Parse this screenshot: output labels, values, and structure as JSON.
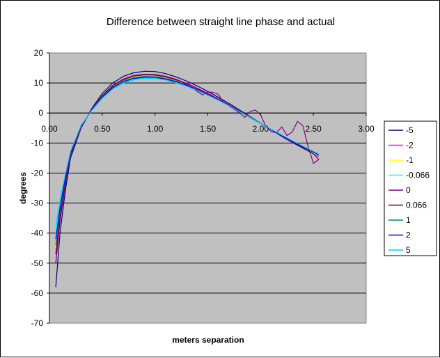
{
  "chart_data": {
    "type": "line",
    "title": "Difference between straight line phase and actual",
    "xlabel": "meters separation",
    "ylabel": "degrees",
    "xlim": [
      0.0,
      3.0
    ],
    "ylim": [
      -70,
      20
    ],
    "xticks": [
      "0.00",
      "0.50",
      "1.00",
      "1.50",
      "2.00",
      "2.50",
      "3.00"
    ],
    "xtick_values": [
      0,
      0.5,
      1,
      1.5,
      2,
      2.5,
      3
    ],
    "yticks": [
      "20",
      "10",
      "0",
      "-10",
      "-20",
      "-30",
      "-40",
      "-50",
      "-60",
      "-70"
    ],
    "ytick_values": [
      20,
      10,
      0,
      -10,
      -20,
      -30,
      -40,
      -50,
      -60,
      -70
    ],
    "grid": "horizontal",
    "plot_background": "#C0C0C0",
    "legend_position": "right",
    "series": [
      {
        "name": "-5",
        "color": "#000080",
        "x": [
          0.06,
          0.1,
          0.15,
          0.2,
          0.3,
          0.4,
          0.5,
          0.6,
          0.7,
          0.8,
          0.9,
          1.0,
          1.1,
          1.2,
          1.3,
          1.4,
          1.5,
          1.6,
          1.7,
          1.8,
          1.9,
          2.0,
          2.1,
          2.2,
          2.3,
          2.4,
          2.5,
          2.55
        ],
        "y": [
          -58,
          -40,
          -26,
          -15,
          -5,
          1.5,
          6.5,
          10,
          12.2,
          13.4,
          13.9,
          13.8,
          13.1,
          12.0,
          10.6,
          9.0,
          7.2,
          5.2,
          3.2,
          1.0,
          -1.2,
          -3.4,
          -5.6,
          -7.8,
          -9.8,
          -11.7,
          -13.6,
          -14.5
        ]
      },
      {
        "name": "-2",
        "color": "#FF00FF",
        "x": [
          0.06,
          0.1,
          0.15,
          0.2,
          0.3,
          0.4,
          0.5,
          0.6,
          0.7,
          0.8,
          0.9,
          1.0,
          1.1,
          1.2,
          1.3,
          1.4,
          1.5,
          1.6,
          1.7,
          1.8,
          1.9,
          2.0,
          2.1,
          2.2,
          2.3,
          2.4,
          2.5,
          2.55
        ],
        "y": [
          -50,
          -36,
          -24,
          -14,
          -4.8,
          1.2,
          5.8,
          9.2,
          11.3,
          12.5,
          12.9,
          12.8,
          12.2,
          11.2,
          9.9,
          8.3,
          6.6,
          4.7,
          2.8,
          0.7,
          -1.4,
          -3.5,
          -5.6,
          -7.6,
          -9.6,
          -11.6,
          -13.5,
          -14.5
        ]
      },
      {
        "name": "-1",
        "color": "#FFFF00",
        "x": [
          0.06,
          0.1,
          0.15,
          0.2,
          0.3,
          0.4,
          0.5,
          0.6,
          0.7,
          0.8,
          0.9,
          1.0,
          1.1,
          1.2,
          1.3,
          1.4,
          1.5,
          1.6,
          1.7,
          1.8,
          1.9,
          2.0,
          2.1,
          2.2,
          2.3,
          2.4,
          2.5,
          2.55
        ],
        "y": [
          -45,
          -33,
          -22.5,
          -13.5,
          -4.5,
          1.0,
          5.5,
          8.8,
          10.9,
          12.0,
          12.4,
          12.3,
          11.7,
          10.8,
          9.5,
          8.0,
          6.3,
          4.5,
          2.6,
          0.6,
          -1.4,
          -3.5,
          -5.5,
          -7.5,
          -9.5,
          -11.4,
          -13.3,
          -14.2
        ]
      },
      {
        "name": "-0.066",
        "color": "#00FFFF",
        "x": [
          0.06,
          0.1,
          0.15,
          0.2,
          0.3,
          0.4,
          0.5,
          0.6,
          0.7,
          0.8,
          0.9,
          1.0,
          1.1,
          1.2,
          1.3,
          1.4,
          1.5,
          1.6,
          1.7,
          1.8,
          1.9,
          2.0,
          2.1,
          2.2,
          2.3,
          2.4,
          2.5,
          2.55
        ],
        "y": [
          -40,
          -30,
          -21,
          -13,
          -4.2,
          0.9,
          5.0,
          8.2,
          10.2,
          11.3,
          11.7,
          11.7,
          11.2,
          10.3,
          9.1,
          7.7,
          6.1,
          4.3,
          2.5,
          0.5,
          -1.5,
          -3.5,
          -5.5,
          -7.5,
          -9.4,
          -11.3,
          -13.1,
          -14.0
        ]
      },
      {
        "name": "0",
        "color": "#800080",
        "x": [
          0.06,
          0.1,
          0.15,
          0.2,
          0.3,
          0.4,
          0.5,
          0.6,
          0.7,
          0.8,
          0.9,
          1.0,
          1.1,
          1.2,
          1.3,
          1.4,
          1.45,
          1.5,
          1.55,
          1.6,
          1.65,
          1.7,
          1.75,
          1.8,
          1.85,
          1.9,
          1.95,
          2.0,
          2.05,
          2.1,
          2.15,
          2.2,
          2.25,
          2.3,
          2.35,
          2.4,
          2.45,
          2.5,
          2.55
        ],
        "y": [
          -50,
          -36,
          -24,
          -14,
          -4.8,
          1.2,
          5.8,
          9.2,
          11.3,
          12.5,
          12.9,
          12.8,
          12.2,
          11.2,
          9.5,
          7.2,
          6.0,
          7.0,
          6.9,
          6.2,
          3.5,
          2.4,
          1.2,
          0.1,
          -1.5,
          0.5,
          1.0,
          -0.6,
          -4.5,
          -6.2,
          -6.6,
          -4.6,
          -7.5,
          -6.3,
          -2.8,
          -4.2,
          -11.2,
          -16.8,
          -15.5
        ]
      },
      {
        "name": "0.066",
        "color": "#800000",
        "x": [
          0.06,
          0.1,
          0.15,
          0.2,
          0.3,
          0.4,
          0.5,
          0.6,
          0.7,
          0.8,
          0.9,
          1.0,
          1.1,
          1.2,
          1.3,
          1.4,
          1.5,
          1.6,
          1.7,
          1.8,
          1.9,
          2.0,
          2.1,
          2.2,
          2.3,
          2.4,
          2.5,
          2.55
        ],
        "y": [
          -47,
          -34.5,
          -23,
          -13.8,
          -4.6,
          1.1,
          5.6,
          9.0,
          11.1,
          12.3,
          12.7,
          12.6,
          12.0,
          11.0,
          9.7,
          8.1,
          6.4,
          4.6,
          2.7,
          0.6,
          -1.4,
          -3.5,
          -5.5,
          -7.6,
          -9.6,
          -11.6,
          -13.6,
          -15.5
        ]
      },
      {
        "name": "1",
        "color": "#008080",
        "x": [
          0.06,
          0.1,
          0.15,
          0.2,
          0.3,
          0.4,
          0.5,
          0.6,
          0.7,
          0.8,
          0.9,
          1.0,
          1.1,
          1.2,
          1.3,
          1.4,
          1.5,
          1.6,
          1.7,
          1.8,
          1.9,
          2.0,
          2.1,
          2.2,
          2.3,
          2.4,
          2.5,
          2.55
        ],
        "y": [
          -44,
          -32.5,
          -22,
          -13.3,
          -4.4,
          1.0,
          5.3,
          8.6,
          10.7,
          11.8,
          12.2,
          12.1,
          11.5,
          10.6,
          9.3,
          7.8,
          6.2,
          4.4,
          2.5,
          0.5,
          -1.5,
          -3.5,
          -5.5,
          -7.5,
          -9.4,
          -11.3,
          -13.1,
          -14.0
        ]
      },
      {
        "name": "2",
        "color": "#0000FF",
        "x": [
          0.06,
          0.1,
          0.15,
          0.2,
          0.3,
          0.4,
          0.5,
          0.6,
          0.7,
          0.8,
          0.9,
          1.0,
          1.1,
          1.2,
          1.3,
          1.4,
          1.5,
          1.6,
          1.7,
          1.8,
          1.9,
          2.0,
          2.1,
          2.2,
          2.3,
          2.4,
          2.5,
          2.55
        ],
        "y": [
          -42,
          -31.5,
          -21.5,
          -13.2,
          -4.3,
          0.9,
          5.1,
          8.4,
          10.4,
          11.5,
          11.9,
          11.9,
          11.3,
          10.4,
          9.2,
          7.7,
          6.1,
          4.3,
          2.5,
          0.5,
          -1.5,
          -3.5,
          -5.5,
          -7.5,
          -9.4,
          -11.3,
          -13.0,
          -13.9
        ]
      },
      {
        "name": "5",
        "color": "#00CCFF",
        "x": [
          0.06,
          0.1,
          0.15,
          0.2,
          0.3,
          0.4,
          0.5,
          0.6,
          0.7,
          0.8,
          0.9,
          1.0,
          1.1,
          1.2,
          1.3,
          1.4,
          1.5,
          1.6,
          1.7,
          1.8,
          1.9,
          2.0,
          2.1,
          2.2,
          2.3,
          2.4,
          2.5,
          2.55
        ],
        "y": [
          -38,
          -29,
          -20.5,
          -12.8,
          -4.1,
          0.8,
          4.9,
          8.0,
          10.0,
          11.1,
          11.5,
          11.5,
          11.0,
          10.1,
          8.9,
          7.5,
          5.9,
          4.2,
          2.4,
          0.4,
          -1.5,
          -3.5,
          -5.4,
          -7.3,
          -9.2,
          -11.0,
          -12.8,
          -13.6
        ]
      }
    ]
  }
}
